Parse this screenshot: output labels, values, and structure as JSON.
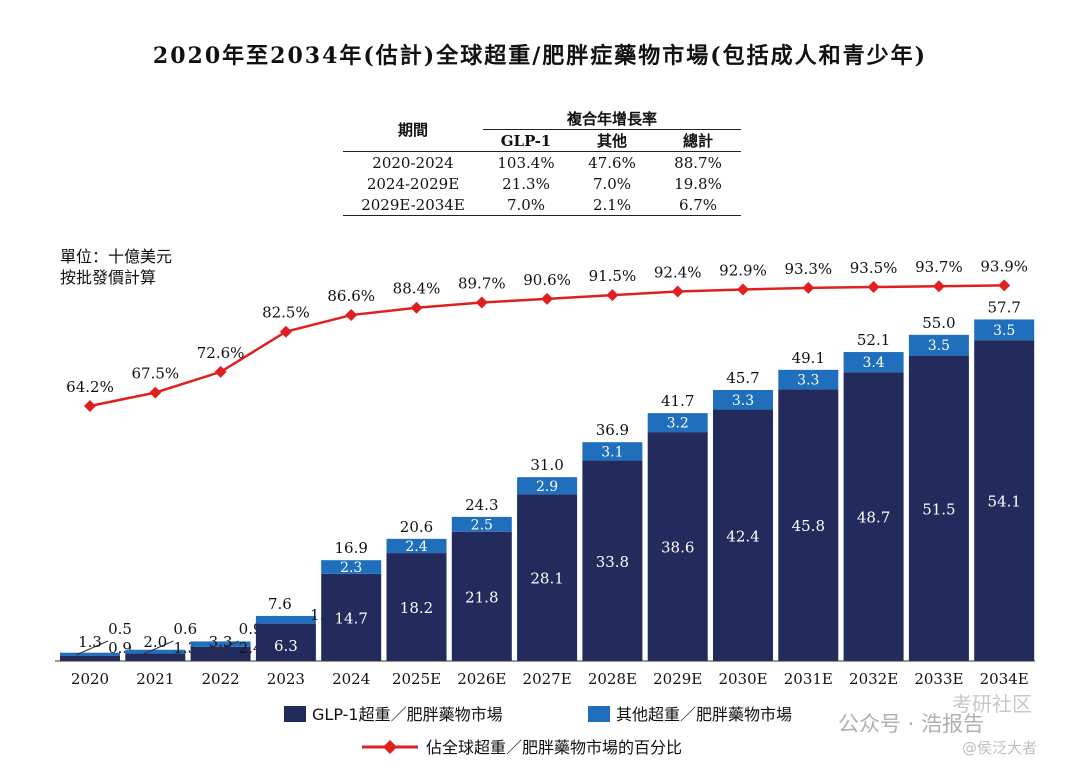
{
  "page": {
    "title": "2020年至2034年(估計)全球超重/肥胖症藥物市場(包括成人和青少年)",
    "unit_line1": "單位：十億美元",
    "unit_line2": "按批發價計算"
  },
  "cagr_table": {
    "period_header": "期間",
    "cagr_header": "複合年增長率",
    "col_headers": [
      "GLP-1",
      "其他",
      "總計"
    ],
    "rows": [
      {
        "period": "2020-2024",
        "glp1": "103.4%",
        "other": "47.6%",
        "total": "88.7%"
      },
      {
        "period": "2024-2029E",
        "glp1": "21.3%",
        "other": "7.0%",
        "total": "19.8%"
      },
      {
        "period": "2029E-2034E",
        "glp1": "7.0%",
        "other": "2.1%",
        "total": "6.7%"
      }
    ]
  },
  "legend": {
    "glp1": "GLP-1超重／肥胖藥物市場",
    "other": "其他超重／肥胖藥物市場",
    "share": "佔全球超重／肥胖藥物市場的百分比"
  },
  "watermark": {
    "line1": "公众号 · 浩报告",
    "line2": "考研社区",
    "line3": "@侯泛大者"
  },
  "colors": {
    "glp1": "#232a5c",
    "other": "#1f6fbd",
    "share_line": "#e02020"
  },
  "chart_data": {
    "type": "bar",
    "stacked": true,
    "categories": [
      "2020",
      "2021",
      "2022",
      "2023",
      "2024",
      "2025E",
      "2026E",
      "2027E",
      "2028E",
      "2029E",
      "2030E",
      "2031E",
      "2032E",
      "2033E",
      "2034E"
    ],
    "series": [
      {
        "name": "GLP-1超重／肥胖藥物市場",
        "values": [
          0.9,
          1.3,
          2.4,
          6.3,
          14.7,
          18.2,
          21.8,
          28.1,
          33.8,
          38.6,
          42.4,
          45.8,
          48.7,
          51.5,
          54.1
        ]
      },
      {
        "name": "其他超重／肥胖藥物市場",
        "values": [
          0.5,
          0.6,
          0.9,
          1.3,
          2.3,
          2.4,
          2.5,
          2.9,
          3.1,
          3.2,
          3.3,
          3.3,
          3.4,
          3.5,
          3.5
        ]
      }
    ],
    "totals": [
      1.3,
      2.0,
      3.3,
      7.6,
      16.9,
      20.6,
      24.3,
      31.0,
      36.9,
      41.7,
      45.7,
      49.1,
      52.1,
      55.0,
      57.7
    ],
    "glp1_labels": [
      "0.9",
      "1.3",
      "2.4",
      "6.3",
      "14.7",
      "18.2",
      "21.8",
      "28.1",
      "33.8",
      "38.6",
      "42.4",
      "45.8",
      "48.7",
      "51.5",
      "54.1"
    ],
    "other_labels": [
      "0.5",
      "0.6",
      "0.9",
      "1.3",
      "2.3",
      "2.4",
      "2.5",
      "2.9",
      "3.1",
      "3.2",
      "3.3",
      "3.3",
      "3.4",
      "3.5",
      "3.5"
    ],
    "total_labels": [
      "1.3",
      "2.0",
      "3.3",
      "7.6",
      "16.9",
      "20.6",
      "24.3",
      "31.0",
      "36.9",
      "41.7",
      "45.7",
      "49.1",
      "52.1",
      "55.0",
      "57.7"
    ],
    "line": {
      "name": "佔全球超重／肥胖藥物市場的百分比",
      "values": [
        64.2,
        67.5,
        72.6,
        82.5,
        86.6,
        88.4,
        89.7,
        90.6,
        91.5,
        92.4,
        92.9,
        93.3,
        93.5,
        93.7,
        93.9
      ],
      "labels": [
        "64.2%",
        "67.5%",
        "72.6%",
        "82.5%",
        "86.6%",
        "88.4%",
        "89.7%",
        "90.6%",
        "91.5%",
        "92.4%",
        "92.9%",
        "93.3%",
        "93.5%",
        "93.7%",
        "93.9%"
      ]
    },
    "ylim": [
      0,
      60
    ],
    "grid": false,
    "legend_position": "bottom"
  }
}
